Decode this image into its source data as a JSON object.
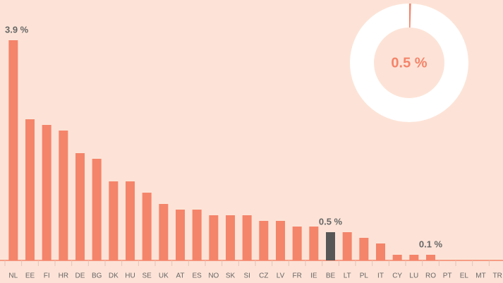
{
  "chart_data": [
    {
      "type": "bar",
      "categories": [
        "NL",
        "EE",
        "FI",
        "HR",
        "DE",
        "BG",
        "DK",
        "HU",
        "SE",
        "UK",
        "AT",
        "ES",
        "NO",
        "SK",
        "SI",
        "CZ",
        "LV",
        "FR",
        "IE",
        "BE",
        "LT",
        "PL",
        "IT",
        "CY",
        "LU",
        "RO",
        "PT",
        "EL",
        "MT",
        "TR"
      ],
      "values": [
        3.9,
        2.5,
        2.4,
        2.3,
        1.9,
        1.8,
        1.4,
        1.4,
        1.2,
        1.0,
        0.9,
        0.9,
        0.8,
        0.8,
        0.8,
        0.7,
        0.7,
        0.6,
        0.6,
        0.5,
        0.5,
        0.4,
        0.3,
        0.1,
        0.1,
        0.1,
        0,
        0,
        0,
        0
      ],
      "value_labels": [
        "3.9 %",
        null,
        null,
        null,
        null,
        null,
        null,
        null,
        null,
        null,
        null,
        null,
        null,
        null,
        null,
        null,
        null,
        null,
        null,
        "0.5 %",
        null,
        null,
        null,
        null,
        null,
        "0.1 %",
        null,
        null,
        null,
        null
      ],
      "colors": [
        "#f4846a",
        "#f4846a",
        "#f4846a",
        "#f4846a",
        "#f4846a",
        "#f4846a",
        "#f4846a",
        "#f4846a",
        "#f4846a",
        "#f4846a",
        "#f4846a",
        "#f4846a",
        "#f4846a",
        "#f4846a",
        "#f4846a",
        "#f4846a",
        "#f4846a",
        "#f4846a",
        "#f4846a",
        "#575757",
        "#f4846a",
        "#f4846a",
        "#f4846a",
        "#f4846a",
        "#f4846a",
        "#f4846a",
        "#f4846a",
        "#f4846a",
        "#f4846a",
        "#f4846a"
      ],
      "ylim": [
        0,
        4
      ]
    },
    {
      "type": "pie",
      "values": [
        0.5
      ],
      "value_labels": [
        "0.5 %"
      ],
      "color": "#f4846a",
      "total": 100
    }
  ]
}
